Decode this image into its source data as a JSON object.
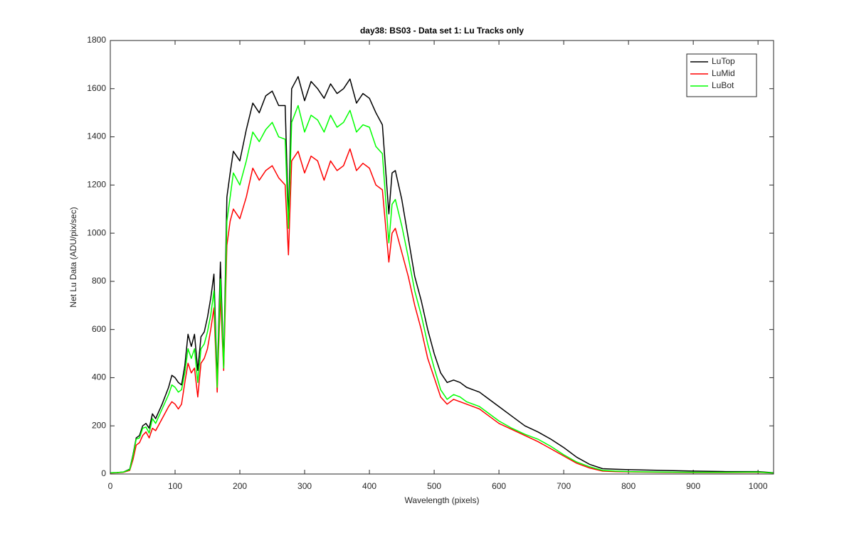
{
  "chart_data": {
    "type": "line",
    "title": "day38: BS03 - Data set 1: Lu Tracks only",
    "xlabel": "Wavelength (pixels)",
    "ylabel": "Net Lu Data (ADU/pix/sec)",
    "x": [
      0,
      10,
      20,
      30,
      35,
      40,
      45,
      50,
      55,
      60,
      65,
      70,
      80,
      90,
      95,
      100,
      105,
      110,
      115,
      120,
      125,
      130,
      135,
      140,
      145,
      150,
      155,
      160,
      165,
      170,
      175,
      180,
      185,
      190,
      200,
      210,
      220,
      230,
      240,
      250,
      260,
      270,
      275,
      280,
      290,
      300,
      310,
      320,
      330,
      340,
      350,
      360,
      370,
      380,
      390,
      400,
      410,
      420,
      430,
      435,
      440,
      450,
      460,
      470,
      480,
      490,
      500,
      510,
      520,
      530,
      540,
      550,
      560,
      570,
      580,
      600,
      620,
      640,
      660,
      680,
      700,
      720,
      740,
      760,
      780,
      800,
      850,
      900,
      950,
      1000,
      1024
    ],
    "series": [
      {
        "name": "LuTop",
        "color": "#000000",
        "values": [
          5,
          6,
          8,
          20,
          80,
          150,
          160,
          200,
          210,
          190,
          250,
          230,
          290,
          360,
          410,
          400,
          380,
          370,
          450,
          580,
          530,
          580,
          430,
          570,
          590,
          650,
          730,
          830,
          380,
          880,
          450,
          1150,
          1250,
          1340,
          1300,
          1430,
          1540,
          1500,
          1570,
          1590,
          1530,
          1530,
          1050,
          1600,
          1650,
          1550,
          1630,
          1600,
          1560,
          1620,
          1580,
          1600,
          1640,
          1540,
          1580,
          1560,
          1500,
          1450,
          1080,
          1250,
          1260,
          1140,
          980,
          820,
          720,
          600,
          500,
          420,
          380,
          390,
          380,
          360,
          350,
          340,
          320,
          280,
          240,
          200,
          175,
          145,
          110,
          70,
          40,
          22,
          20,
          18,
          15,
          12,
          10,
          10,
          5
        ]
      },
      {
        "name": "LuMid",
        "color": "#ff0000",
        "values": [
          4,
          5,
          7,
          15,
          60,
          120,
          130,
          160,
          175,
          150,
          190,
          180,
          230,
          280,
          300,
          290,
          270,
          290,
          380,
          460,
          420,
          440,
          320,
          460,
          480,
          520,
          600,
          690,
          340,
          740,
          430,
          950,
          1050,
          1100,
          1060,
          1150,
          1270,
          1220,
          1260,
          1280,
          1230,
          1200,
          910,
          1300,
          1340,
          1250,
          1320,
          1300,
          1220,
          1300,
          1260,
          1280,
          1350,
          1260,
          1290,
          1270,
          1200,
          1180,
          880,
          1000,
          1020,
          920,
          820,
          700,
          600,
          480,
          400,
          320,
          290,
          310,
          300,
          290,
          280,
          270,
          250,
          210,
          185,
          160,
          135,
          105,
          75,
          45,
          25,
          12,
          10,
          9,
          7,
          6,
          6,
          7,
          4
        ]
      },
      {
        "name": "LuBot",
        "color": "#00ff00",
        "values": [
          5,
          6,
          8,
          18,
          75,
          145,
          150,
          190,
          195,
          170,
          230,
          210,
          270,
          330,
          370,
          360,
          340,
          350,
          420,
          520,
          480,
          520,
          380,
          520,
          540,
          590,
          660,
          760,
          360,
          810,
          440,
          1050,
          1150,
          1250,
          1200,
          1300,
          1420,
          1380,
          1430,
          1460,
          1400,
          1390,
          1020,
          1460,
          1530,
          1420,
          1490,
          1470,
          1420,
          1490,
          1440,
          1460,
          1510,
          1420,
          1450,
          1440,
          1360,
          1330,
          960,
          1120,
          1140,
          1030,
          900,
          760,
          660,
          540,
          440,
          350,
          310,
          330,
          320,
          300,
          290,
          280,
          260,
          220,
          190,
          165,
          145,
          115,
          80,
          50,
          30,
          15,
          12,
          10,
          8,
          7,
          7,
          8,
          4
        ]
      }
    ],
    "xlim": [
      0,
      1024
    ],
    "xticks": [
      0,
      100,
      200,
      300,
      400,
      500,
      600,
      700,
      800,
      900,
      1000
    ],
    "ylim": [
      0,
      1800
    ],
    "yticks": [
      0,
      200,
      400,
      600,
      800,
      1000,
      1200,
      1400,
      1600,
      1800
    ],
    "legend": "upper right"
  }
}
